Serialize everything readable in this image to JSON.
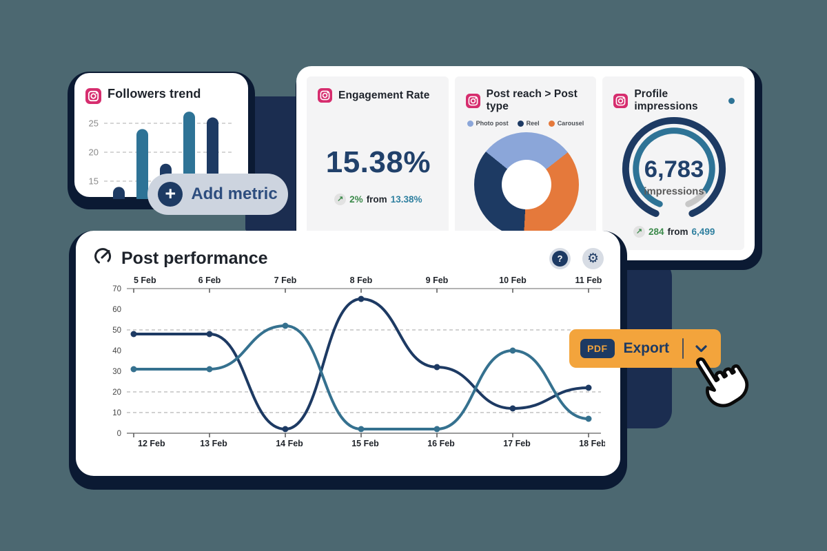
{
  "background": "#4c6871",
  "colors": {
    "navy": "#1d3a63",
    "teal": "#2e7396",
    "teal_text": "#2e7f9f",
    "light_blue": "#8ba6d9",
    "orange": "#e5793b",
    "amber": "#f3a43c",
    "green": "#3c8a4b",
    "shadow_navy": "#0b1a33",
    "card_gray": "#f4f4f5",
    "pill_gray": "#cdd4df",
    "ig_pink": "#d62d6e"
  },
  "icons": {
    "plus": "+",
    "help": "?",
    "gear": "⚙",
    "trend_up": "↗"
  },
  "followers_card": {
    "title": "Followers trend"
  },
  "add_metric_button": {
    "label": "Add metric"
  },
  "metrics": {
    "engagement": {
      "title": "Engagement Rate",
      "value": "15.38%",
      "delta": "2%",
      "from_word": "from",
      "previous": "13.38%"
    },
    "post_reach": {
      "title": "Post reach > Post type",
      "legend": [
        "Photo post",
        "Reel",
        "Carousel"
      ]
    },
    "impressions": {
      "title": "Profile impressions",
      "value": "6,783",
      "unit": "impressions",
      "delta": "284",
      "from_word": "from",
      "previous": "6,499"
    }
  },
  "performance": {
    "title": "Post performance"
  },
  "export": {
    "pdf_label": "PDF",
    "label": "Export"
  },
  "chart_data": [
    {
      "id": "followers-bars",
      "type": "bar",
      "title": "Followers trend",
      "values": [
        14,
        24,
        18,
        27,
        26
      ],
      "bar_colors": [
        "#1d3a63",
        "#2e7396",
        "#1d3a63",
        "#2e7396",
        "#1d3a63"
      ],
      "yticks": [
        25,
        20,
        15
      ],
      "ylim": [
        12,
        28
      ],
      "grid": "dashed-horizontal"
    },
    {
      "id": "post-type-donut",
      "type": "pie",
      "title": "Post reach > Post type",
      "start_angle_deg": -51,
      "slices_clockwise": [
        {
          "label": "Photo post",
          "percent": 28.6,
          "color": "#8ba6d9"
        },
        {
          "label": "Carousel",
          "percent": 36.4,
          "color": "#e5793b"
        },
        {
          "label": "Reel",
          "percent": 35.0,
          "color": "#1d3a63"
        }
      ],
      "legend_position": "top",
      "legend_order": [
        "Photo post",
        "Reel",
        "Carousel"
      ]
    },
    {
      "id": "impressions-gauge",
      "type": "gauge",
      "title": "Profile impressions",
      "value": 6783,
      "previous": 6499,
      "delta": 284,
      "progress": 0.9,
      "gap_deg": 44
    },
    {
      "id": "post-performance-lines",
      "type": "line",
      "title": "Post performance",
      "x_top": [
        "5 Feb",
        "6 Feb",
        "7 Feb",
        "8 Feb",
        "9 Feb",
        "10 Feb",
        "11 Feb"
      ],
      "x_bottom": [
        "12 Feb",
        "13 Feb",
        "14 Feb",
        "15 Feb",
        "16 Feb",
        "17 Feb",
        "18 Feb"
      ],
      "yticks": [
        70,
        60,
        50,
        40,
        30,
        20,
        10,
        0
      ],
      "grid_values": [
        50,
        20,
        10
      ],
      "ylim": [
        0,
        70
      ],
      "series": [
        {
          "name": "dark-series",
          "color": "#1d3a63",
          "values": [
            48,
            48,
            2,
            65,
            32,
            12,
            22
          ]
        },
        {
          "name": "teal-series",
          "color": "#35718f",
          "values": [
            31,
            31,
            52,
            2,
            2,
            40,
            7
          ]
        }
      ]
    }
  ]
}
